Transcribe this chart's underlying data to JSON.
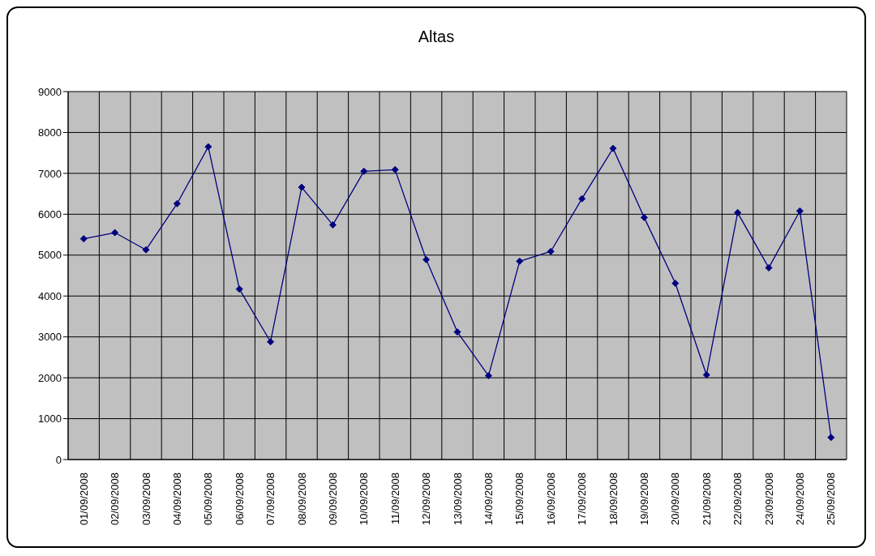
{
  "chart_data": {
    "type": "line",
    "title": "Altas",
    "categories": [
      "01/09/2008",
      "02/09/2008",
      "03/09/2008",
      "04/09/2008",
      "05/09/2008",
      "06/09/2008",
      "07/09/2008",
      "08/09/2008",
      "09/09/2008",
      "10/09/2008",
      "11/09/2008",
      "12/09/2008",
      "13/09/2008",
      "14/09/2008",
      "15/09/2008",
      "16/09/2008",
      "17/09/2008",
      "18/09/2008",
      "19/09/2008",
      "20/09/2008",
      "21/09/2008",
      "22/09/2008",
      "23/09/2008",
      "24/09/2008",
      "25/09/2008"
    ],
    "values": [
      5400,
      5550,
      5130,
      6260,
      7650,
      4170,
      2880,
      6660,
      5740,
      7050,
      7090,
      4890,
      3120,
      2050,
      4850,
      5090,
      6380,
      7610,
      5920,
      4310,
      2070,
      6040,
      4690,
      6080,
      540
    ],
    "color": "#000080",
    "marker": "diamond",
    "ylim": [
      0,
      9000
    ],
    "yticks": [
      0,
      1000,
      2000,
      3000,
      4000,
      5000,
      6000,
      7000,
      8000,
      9000
    ],
    "grid": true
  }
}
